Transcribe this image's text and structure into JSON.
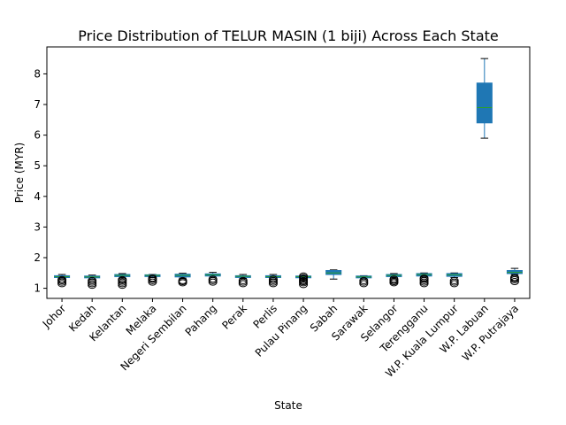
{
  "chart_data": {
    "type": "box",
    "title": "Price Distribution of TELUR MASIN (1 biji) Across Each State",
    "xlabel": "State",
    "ylabel": "Price (MYR)",
    "ylim": [
      0.67,
      8.88
    ],
    "yticks": [
      1,
      2,
      3,
      4,
      5,
      6,
      7,
      8
    ],
    "grid": false,
    "box_color": "#1f77b4",
    "median_color": "#2ca02c",
    "series": [
      {
        "category": "Johor",
        "whislo": 1.31,
        "q1": 1.35,
        "med": 1.38,
        "q3": 1.41,
        "whishi": 1.45,
        "fliers": [
          1.15,
          1.2,
          1.25,
          1.28
        ]
      },
      {
        "category": "Kedah",
        "whislo": 1.3,
        "q1": 1.34,
        "med": 1.37,
        "q3": 1.4,
        "whishi": 1.43,
        "fliers": [
          1.1,
          1.15,
          1.2,
          1.25
        ]
      },
      {
        "category": "Kelantan",
        "whislo": 1.33,
        "q1": 1.38,
        "med": 1.42,
        "q3": 1.45,
        "whishi": 1.48,
        "fliers": [
          1.1,
          1.15,
          1.2,
          1.25,
          1.28
        ]
      },
      {
        "category": "Melaka",
        "whislo": 1.35,
        "q1": 1.39,
        "med": 1.42,
        "q3": 1.44,
        "whishi": 1.45,
        "fliers": [
          1.2,
          1.25,
          1.3,
          1.33
        ]
      },
      {
        "category": "Negeri Sembilan",
        "whislo": 1.33,
        "q1": 1.37,
        "med": 1.42,
        "q3": 1.46,
        "whishi": 1.49,
        "fliers": [
          1.18,
          1.22,
          1.25
        ]
      },
      {
        "category": "Pahang",
        "whislo": 1.36,
        "q1": 1.4,
        "med": 1.44,
        "q3": 1.47,
        "whishi": 1.52,
        "fliers": [
          1.2,
          1.25,
          1.3
        ]
      },
      {
        "category": "Perak",
        "whislo": 1.32,
        "q1": 1.36,
        "med": 1.39,
        "q3": 1.41,
        "whishi": 1.45,
        "fliers": [
          1.15,
          1.2,
          1.25
        ]
      },
      {
        "category": "Perlis",
        "whislo": 1.3,
        "q1": 1.35,
        "med": 1.38,
        "q3": 1.41,
        "whishi": 1.45,
        "fliers": [
          1.15,
          1.2,
          1.25,
          1.3
        ]
      },
      {
        "category": "Pulau Pinang",
        "whislo": 1.33,
        "q1": 1.36,
        "med": 1.38,
        "q3": 1.4,
        "whishi": 1.42,
        "fliers": [
          1.12,
          1.18,
          1.22,
          1.25,
          1.3,
          1.35,
          1.4
        ]
      },
      {
        "category": "Sabah",
        "whislo": 1.3,
        "q1": 1.45,
        "med": 1.5,
        "q3": 1.58,
        "whishi": 1.6,
        "fliers": []
      },
      {
        "category": "Sarawak",
        "whislo": 1.31,
        "q1": 1.34,
        "med": 1.37,
        "q3": 1.4,
        "whishi": 1.41,
        "fliers": [
          1.15,
          1.2,
          1.25
        ]
      },
      {
        "category": "Selangor",
        "whislo": 1.34,
        "q1": 1.38,
        "med": 1.42,
        "q3": 1.45,
        "whishi": 1.48,
        "fliers": [
          1.18,
          1.22,
          1.26,
          1.3
        ]
      },
      {
        "category": "Terengganu",
        "whislo": 1.36,
        "q1": 1.4,
        "med": 1.45,
        "q3": 1.48,
        "whishi": 1.5,
        "fliers": [
          1.15,
          1.2,
          1.25,
          1.3,
          1.33
        ]
      },
      {
        "category": "W.P. Kuala Lumpur",
        "whislo": 1.35,
        "q1": 1.39,
        "med": 1.44,
        "q3": 1.48,
        "whishi": 1.5,
        "fliers": [
          1.15,
          1.2,
          1.25
        ]
      },
      {
        "category": "W.P. Labuan",
        "whislo": 5.9,
        "q1": 6.4,
        "med": 6.9,
        "q3": 7.7,
        "whishi": 8.5,
        "fliers": []
      },
      {
        "category": "W.P. Putrajaya",
        "whislo": 1.45,
        "q1": 1.48,
        "med": 1.52,
        "q3": 1.58,
        "whishi": 1.65,
        "fliers": [
          1.22,
          1.28,
          1.32,
          1.35
        ]
      }
    ]
  }
}
